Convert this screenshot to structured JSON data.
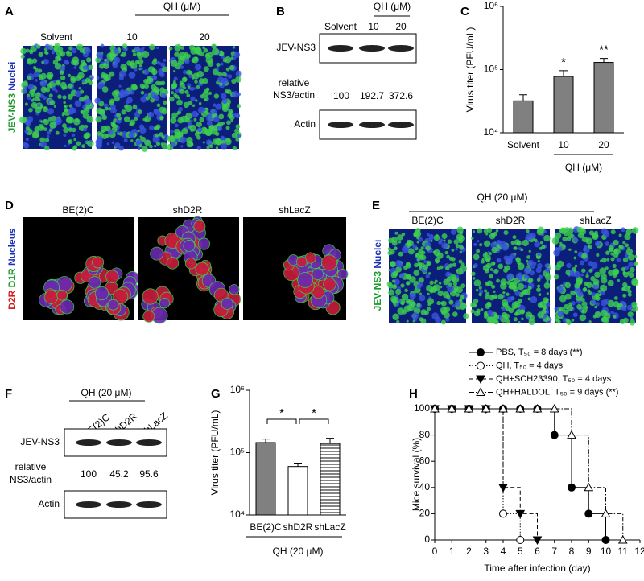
{
  "panel_a": {
    "label": "A",
    "treatment": "QH (μM)",
    "columns": [
      "Solvent",
      "10",
      "20"
    ],
    "stain": [
      "JEV-NS3",
      "Nuclei"
    ]
  },
  "panel_b": {
    "label": "B",
    "treatment": "QH (μM)",
    "columns": [
      "Solvent",
      "10",
      "20"
    ],
    "blot_top": "JEV-NS3",
    "ratio_label": [
      "relative",
      "NS3/actin"
    ],
    "ratios": [
      100,
      192.7,
      372.6
    ],
    "blot_bottom": "Actin"
  },
  "panel_d": {
    "label": "D",
    "columns": [
      "BE(2)C",
      "shD2R",
      "shLacZ"
    ],
    "stain": [
      "D2R",
      "D1R",
      "Nucleus"
    ]
  },
  "panel_e": {
    "label": "E",
    "treatment": "QH (20 μM)",
    "columns": [
      "BE(2)C",
      "shD2R",
      "shLacZ"
    ],
    "stain": [
      "JEV-NS3",
      "Nuclei"
    ]
  },
  "panel_f": {
    "label": "F",
    "treatment": "QH (20 μM)",
    "columns": [
      "BE(2)C",
      "shD2R",
      "shLacZ"
    ],
    "blot_top": "JEV-NS3",
    "ratio_label": [
      "relative",
      "NS3/actin"
    ],
    "ratios": [
      100,
      45.2,
      95.6
    ],
    "blot_bottom": "Actin"
  },
  "chart_data": [
    {
      "type": "bar",
      "label": "C",
      "ylabel": "Virus titer (PFU/mL)",
      "xlabel": "QH (μM)",
      "categories": [
        "Solvent",
        "10",
        "20"
      ],
      "values": [
        32000,
        78000,
        130000
      ],
      "errors": [
        8000,
        18000,
        20000
      ],
      "colors": [
        "#808080",
        "#808080",
        "#808080"
      ],
      "hatch": [
        false,
        false,
        false
      ],
      "annotations": [
        null,
        "*",
        "**"
      ],
      "log": true,
      "ylim": [
        10000,
        1000000
      ],
      "yticks": [
        {
          "value": 10000,
          "label": "10⁴"
        },
        {
          "value": 100000,
          "label": "10⁵"
        },
        {
          "value": 1000000,
          "label": "10⁶"
        }
      ]
    },
    {
      "type": "bar",
      "label": "G",
      "ylabel": "Virus titer (PFU/mL)",
      "xlabel": "QH (20 μM)",
      "categories": [
        "BE(2)C",
        "shD2R",
        "shLacZ"
      ],
      "values": [
        145000,
        60000,
        140000
      ],
      "errors": [
        20000,
        8000,
        30000
      ],
      "colors": [
        "#808080",
        "#ffffff",
        "#ffffff"
      ],
      "hatch": [
        false,
        false,
        true
      ],
      "comparisons": [
        "*",
        "*"
      ],
      "log": true,
      "ylim": [
        10000,
        1000000
      ],
      "yticks": [
        {
          "value": 10000,
          "label": "10⁴"
        },
        {
          "value": 100000,
          "label": "10⁵"
        },
        {
          "value": 1000000,
          "label": "10⁶"
        }
      ]
    },
    {
      "type": "line",
      "label": "H",
      "ylabel": "Mice survival (%)",
      "xlabel": "Time after infection (day)",
      "step": true,
      "legend": "top",
      "x": [
        0,
        1,
        2,
        3,
        4,
        5,
        6,
        7,
        8,
        9,
        10,
        11
      ],
      "series": [
        {
          "name": "PBS, T₅₀ = 8 days (**)",
          "color": "#000000",
          "marker": "circle-filled",
          "linestyle": "solid",
          "values": [
            100,
            100,
            100,
            100,
            100,
            100,
            100,
            80,
            40,
            20,
            0,
            null
          ]
        },
        {
          "name": "QH, T₅₀ = 4 days",
          "color": "#000000",
          "marker": "circle-open",
          "linestyle": "dotted",
          "values": [
            100,
            100,
            100,
            100,
            20,
            0,
            null,
            null,
            null,
            null,
            null,
            null
          ]
        },
        {
          "name": "QH+SCH23390, T₅₀ = 4 days",
          "color": "#000000",
          "marker": "triangle-down-filled",
          "linestyle": "dashed",
          "values": [
            100,
            100,
            100,
            100,
            40,
            20,
            0,
            null,
            null,
            null,
            null,
            null
          ]
        },
        {
          "name": "QH+HALDOL, T₅₀ = 9 days (**)",
          "color": "#000000",
          "marker": "triangle-up-open",
          "linestyle": "dashdot",
          "values": [
            100,
            100,
            100,
            100,
            100,
            100,
            100,
            100,
            80,
            40,
            20,
            0
          ]
        }
      ],
      "xlim": [
        0,
        12
      ],
      "xticks": [
        0,
        1,
        2,
        3,
        4,
        5,
        6,
        7,
        8,
        9,
        10,
        11,
        12
      ],
      "ylim": [
        0,
        100
      ],
      "yticks": [
        0,
        20,
        40,
        60,
        80,
        100
      ]
    }
  ]
}
